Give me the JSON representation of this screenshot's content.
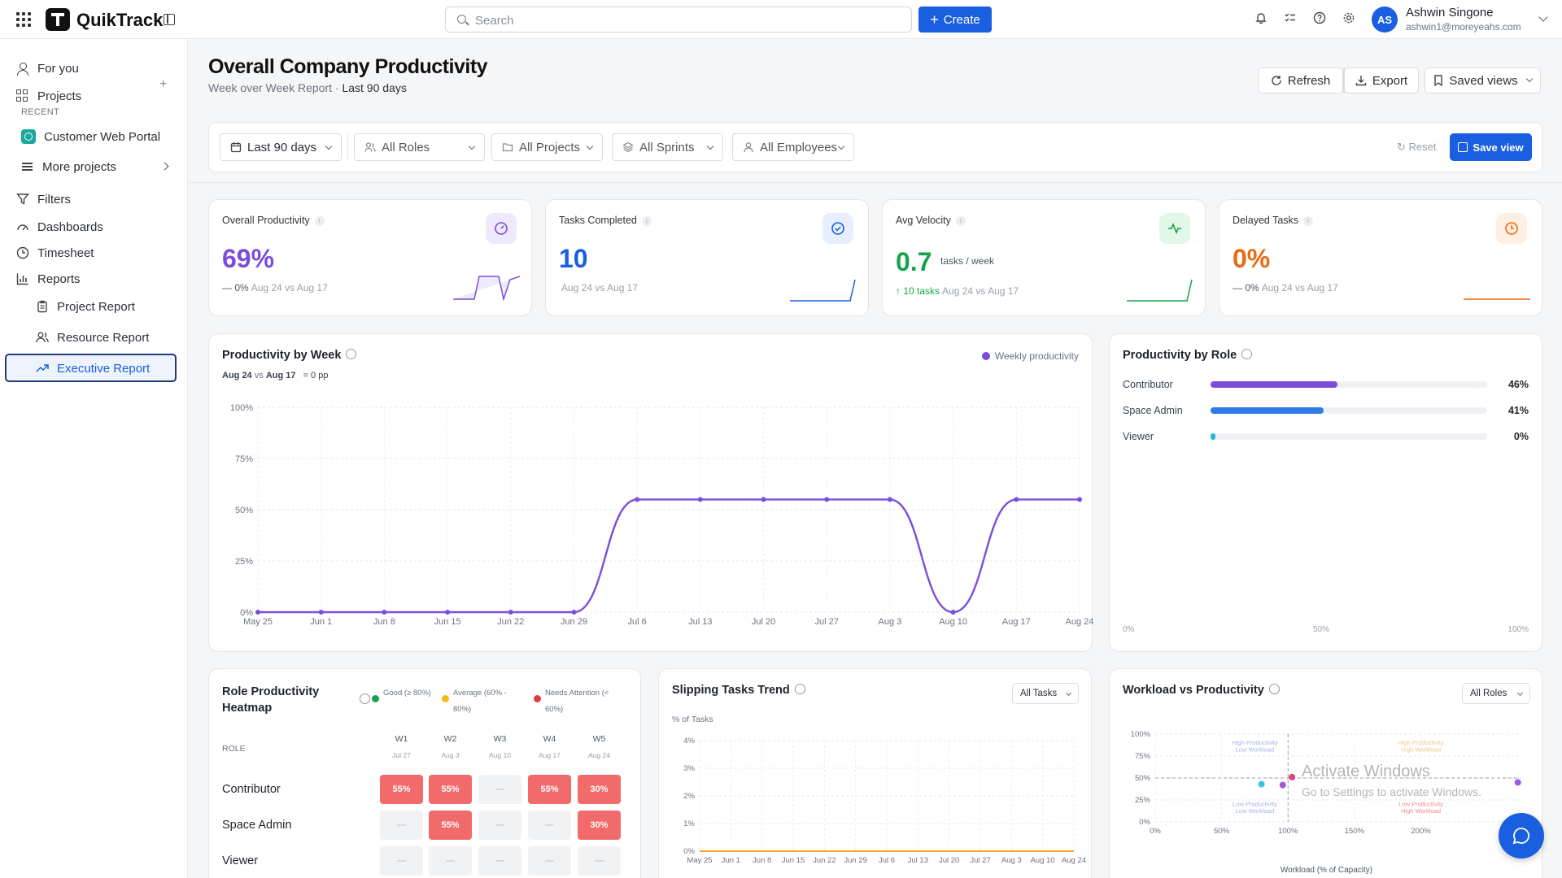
{
  "topbar": {
    "brand": "QuikTrack",
    "search_placeholder": "Search",
    "create_label": "Create",
    "user_initials": "AS",
    "user_name": "Ashwin Singone",
    "user_email": "ashwin1@moreyeahs.com"
  },
  "sidebar": {
    "for_you": "For you",
    "projects": "Projects",
    "recent_label": "RECENT",
    "recent_project": "Customer Web Portal",
    "more_projects": "More projects",
    "filters": "Filters",
    "dashboards": "Dashboards",
    "timesheet": "Timesheet",
    "reports": "Reports",
    "project_report": "Project Report",
    "resource_report": "Resource Report",
    "executive_report": "Executive Report"
  },
  "header": {
    "title": "Overall Company Productivity",
    "subtitle": "Week over Week Report · ",
    "subtitle_range": "Last 90 days",
    "refresh": "Refresh",
    "export": "Export",
    "saved_views": "Saved views"
  },
  "filters": {
    "date_range": "Last 90 days",
    "roles": "All Roles",
    "projects": "All Projects",
    "sprints": "All Sprints",
    "employees": "All Employees",
    "reset": "Reset",
    "save_view": "Save view"
  },
  "kpis": [
    {
      "title": "Overall Productivity",
      "value": "69%",
      "delta": "— 0%",
      "compare": "Aug 24 vs Aug 17",
      "color": "#7c4ddb",
      "badge_bg": "#efe9fd"
    },
    {
      "title": "Tasks Completed",
      "value": "10",
      "delta": "",
      "compare": "Aug 24 vs Aug 17",
      "color": "#1a5fe0",
      "badge_bg": "#e7effd"
    },
    {
      "title": "Avg Velocity",
      "value": "0.7",
      "unit": "tasks / week",
      "delta": "↑ 10 tasks",
      "compare": "Aug 24 vs Aug 17",
      "color": "#16a34a",
      "badge_bg": "#e3f7ea"
    },
    {
      "title": "Delayed Tasks",
      "value": "0%",
      "delta": "— 0%",
      "compare": "Aug 24 vs Aug 17",
      "color": "#ea6a12",
      "badge_bg": "#fdf0e3"
    }
  ],
  "productivity_by_week": {
    "title": "Productivity by Week",
    "legend": "Weekly productivity",
    "compare_prefix": "Aug 24",
    "compare_vs": "vs",
    "compare_suffix": "Aug 17",
    "compare_change": "= 0 pp"
  },
  "productivity_by_role": {
    "title": "Productivity by Role",
    "roles": [
      {
        "name": "Contributor",
        "value": 46,
        "label": "46%",
        "color": "#7c4ddb"
      },
      {
        "name": "Space Admin",
        "value": 41,
        "label": "41%",
        "color": "#2f7be6"
      },
      {
        "name": "Viewer",
        "value": 0,
        "label": "0%",
        "color": "#25b7d3"
      }
    ],
    "axis": [
      "0%",
      "50%",
      "100%"
    ]
  },
  "heatmap": {
    "title": "Role Productivity Heatmap",
    "legend": [
      {
        "label": "Good (≥ 80%)",
        "color": "#16a34a"
      },
      {
        "label": "Average (60% - 80%)",
        "color": "#f5b91c"
      },
      {
        "label": "Needs Attention (< 60%)",
        "color": "#e23d3d"
      }
    ],
    "role_header": "ROLE",
    "weeks": [
      {
        "w": "W1",
        "d": "Jul 27"
      },
      {
        "w": "W2",
        "d": "Aug 3"
      },
      {
        "w": "W3",
        "d": "Aug 10"
      },
      {
        "w": "W4",
        "d": "Aug 17"
      },
      {
        "w": "W5",
        "d": "Aug 24"
      }
    ],
    "rows": [
      {
        "role": "Contributor",
        "cells": [
          "55%",
          "55%",
          "—",
          "55%",
          "30%"
        ]
      },
      {
        "role": "Space Admin",
        "cells": [
          "—",
          "55%",
          "—",
          "—",
          "30%"
        ]
      },
      {
        "role": "Viewer",
        "cells": [
          "—",
          "—",
          "—",
          "—",
          "—"
        ]
      }
    ]
  },
  "slipping": {
    "title": "Slipping Tasks Trend",
    "dropdown": "All Tasks",
    "ylabel": "% of Tasks"
  },
  "workload": {
    "title": "Workload vs Productivity",
    "dropdown": "All Roles",
    "xlabel": "Workload (% of Capacity)",
    "quadrants": {
      "tl": [
        "High Productivity",
        "Low Workload"
      ],
      "tr": [
        "High Productivity",
        "High Workload"
      ],
      "bl": [
        "Low Productivity",
        "Low Workload"
      ],
      "br": [
        "Low Productivity",
        "High Workload"
      ]
    }
  },
  "watermark": {
    "line1": "Activate Windows",
    "line2": "Go to Settings to activate Windows."
  },
  "chart_data": [
    {
      "type": "line",
      "title": "Productivity by Week",
      "x": [
        "May 25",
        "Jun 1",
        "Jun 8",
        "Jun 15",
        "Jun 22",
        "Jun 29",
        "Jul 6",
        "Jul 13",
        "Jul 20",
        "Jul 27",
        "Aug 3",
        "Aug 10",
        "Aug 17",
        "Aug 24"
      ],
      "series": [
        {
          "name": "Weekly productivity",
          "values": [
            0,
            0,
            0,
            0,
            0,
            0,
            55,
            55,
            55,
            55,
            55,
            0,
            55,
            55
          ],
          "color": "#7c4ddb"
        }
      ],
      "yticks": [
        "0%",
        "25%",
        "50%",
        "75%",
        "100%"
      ],
      "ylim": [
        0,
        100
      ],
      "grid": true,
      "legend": "top-right"
    },
    {
      "type": "line",
      "title": "Slipping Tasks Trend",
      "x": [
        "May 25",
        "Jun 1",
        "Jun 8",
        "Jun 15",
        "Jun 22",
        "Jun 29",
        "Jul 6",
        "Jul 13",
        "Jul 20",
        "Jul 27",
        "Aug 3",
        "Aug 10",
        "Aug 24"
      ],
      "series": [
        {
          "values": [
            0,
            0,
            0,
            0,
            0,
            0,
            0,
            0,
            0,
            0,
            0,
            0,
            0
          ],
          "color": "#f5a623"
        }
      ],
      "ylabel": "% of Tasks",
      "yticks": [
        "0%",
        "1%",
        "2%",
        "3%",
        "4%"
      ],
      "ylim": [
        0,
        4
      ],
      "grid": true
    },
    {
      "type": "scatter",
      "title": "Workload vs Productivity",
      "xlabel": "Workload (% of Capacity)",
      "xticks": [
        "0%",
        "50%",
        "100%",
        "150%",
        "200%"
      ],
      "yticks": [
        "0%",
        "25%",
        "50%",
        "75%",
        "100%"
      ],
      "xlim": [
        0,
        275
      ],
      "ylim": [
        0,
        100
      ],
      "points": [
        {
          "x": 80,
          "y": 43,
          "color": "#38c3e0"
        },
        {
          "x": 96,
          "y": 42,
          "color": "#9a5ce0"
        },
        {
          "x": 103,
          "y": 51,
          "color": "#e0457d"
        },
        {
          "x": 273,
          "y": 45,
          "color": "#9a5ce0"
        }
      ],
      "grid": true
    }
  ]
}
